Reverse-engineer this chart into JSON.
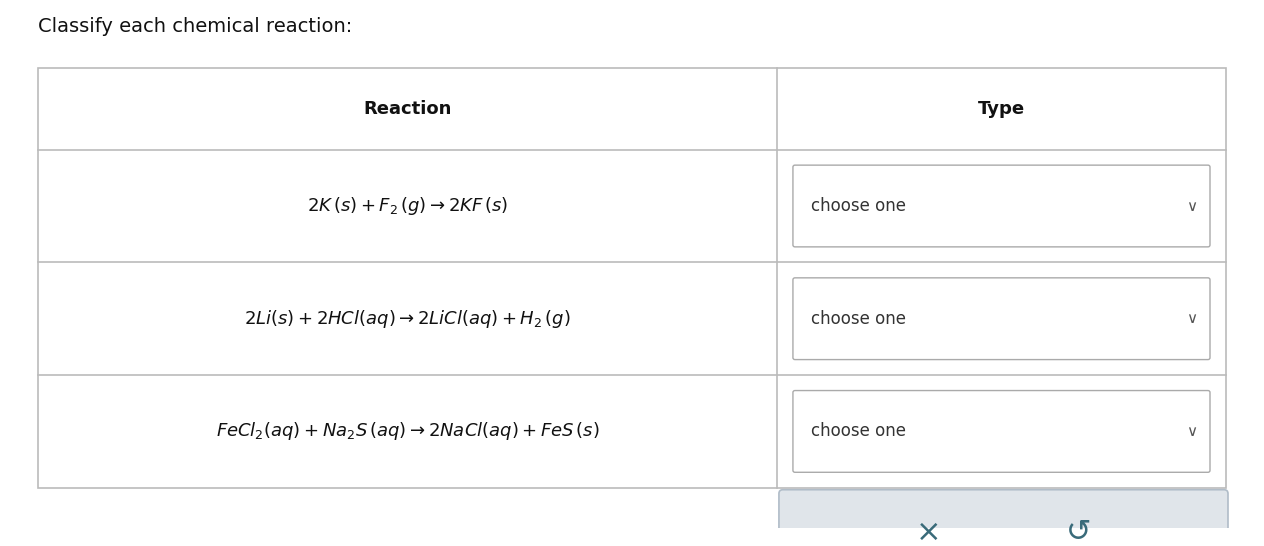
{
  "title": "Classify each chemical reaction:",
  "background_color": "#ffffff",
  "table_border_color": "#bbbbbb",
  "cell_bg": "#ffffff",
  "dropdown_border": "#aaaaaa",
  "bottom_panel_bg": "#e0e5ea",
  "bottom_panel_border": "#b0bcc8",
  "reactions_latex": [
    "2K\\,(\\mathit{s}) + F_2\\,(\\mathit{g}) \\rightarrow 2KF\\,(\\mathit{s})",
    "2Li(\\mathit{s}) + 2HCl(\\mathit{aq}) \\rightarrow 2LiCl(\\mathit{aq}) + H_2\\,(\\mathit{g})",
    "FeCl_2(\\mathit{aq}) + Na_2S\\,(\\mathit{aq}) \\rightarrow 2NaCl(\\mathit{aq}) + FeS\\,(\\mathit{s})"
  ],
  "col_reaction_label": "Reaction",
  "col_type_label": "Type",
  "dropdown_text": "choose one",
  "icon_color": "#3a6b7a",
  "title_fontsize": 14,
  "header_fontsize": 13,
  "reaction_fontsize": 13,
  "dropdown_fontsize": 12
}
